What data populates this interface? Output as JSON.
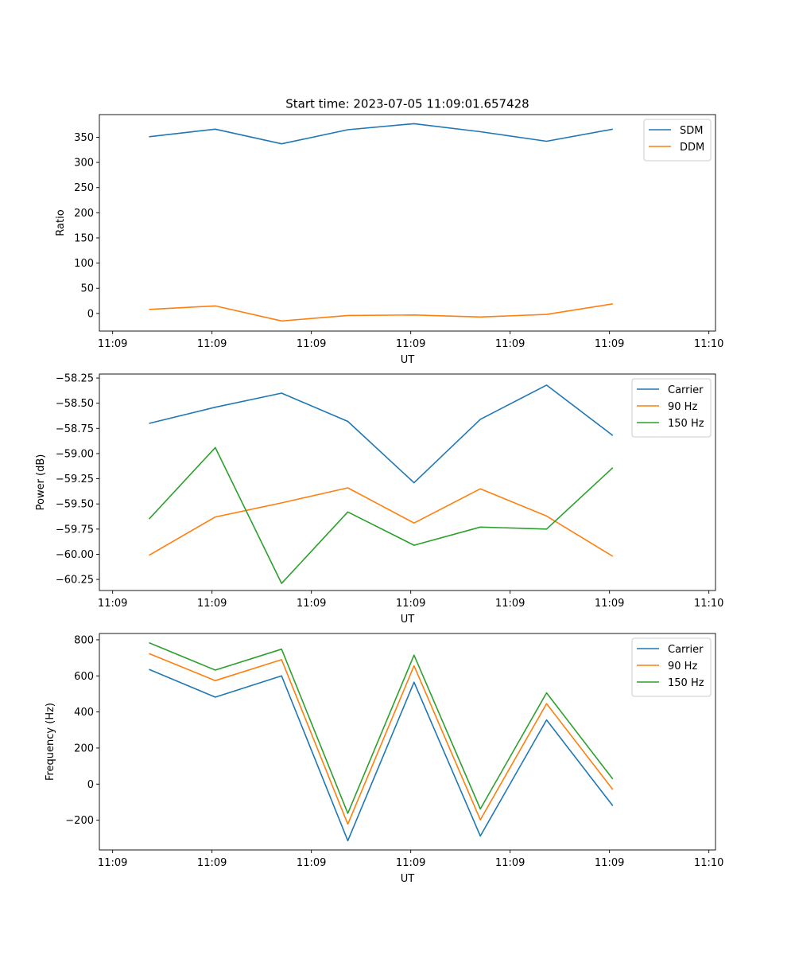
{
  "title": "Start time: 2023-07-05 11:09:01.657428",
  "colors": {
    "blue": "#1f77b4",
    "orange": "#ff7f0e",
    "green": "#2ca02c"
  },
  "chart_data": [
    {
      "type": "line",
      "xlabel": "UT",
      "ylabel": "Ratio",
      "xlim": [
        -0.2,
        9.1
      ],
      "ylim": [
        -35,
        395
      ],
      "x": [
        0.55,
        1.55,
        2.55,
        3.55,
        4.55,
        5.55,
        6.55,
        7.55
      ],
      "xticks": [
        0,
        1.5,
        3,
        4.5,
        6,
        7.5,
        9
      ],
      "xtick_labels": [
        "11:09",
        "11:09",
        "11:09",
        "11:09",
        "11:09",
        "11:09",
        "11:10"
      ],
      "yticks": [
        0,
        50,
        100,
        150,
        200,
        250,
        300,
        350
      ],
      "ytick_labels": [
        "0",
        "50",
        "100",
        "150",
        "200",
        "250",
        "300",
        "350"
      ],
      "legend": "top-right",
      "series": [
        {
          "name": "SDM",
          "color": "#1f77b4",
          "values": [
            351,
            366,
            337,
            365,
            377,
            361,
            342,
            366
          ]
        },
        {
          "name": "DDM",
          "color": "#ff7f0e",
          "values": [
            8,
            15,
            -15,
            -4,
            -3,
            -7,
            -2,
            19
          ]
        }
      ]
    },
    {
      "type": "line",
      "xlabel": "UT",
      "ylabel": "Power (dB)",
      "xlim": [
        -0.2,
        9.1
      ],
      "ylim": [
        -60.36,
        -58.21
      ],
      "x": [
        0.55,
        1.55,
        2.55,
        3.55,
        4.55,
        5.55,
        6.55,
        7.55
      ],
      "xticks": [
        0,
        1.5,
        3,
        4.5,
        6,
        7.5,
        9
      ],
      "xtick_labels": [
        "11:09",
        "11:09",
        "11:09",
        "11:09",
        "11:09",
        "11:09",
        "11:10"
      ],
      "yticks": [
        -60.25,
        -60.0,
        -59.75,
        -59.5,
        -59.25,
        -59.0,
        -58.75,
        -58.5,
        -58.25
      ],
      "ytick_labels": [
        "−60.25",
        "−60.00",
        "−59.75",
        "−59.50",
        "−59.25",
        "−59.00",
        "−58.75",
        "−58.50",
        "−58.25"
      ],
      "legend": "top-right",
      "series": [
        {
          "name": "Carrier",
          "color": "#1f77b4",
          "values": [
            -58.7,
            -58.54,
            -58.4,
            -58.68,
            -59.29,
            -58.66,
            -58.32,
            -58.82
          ]
        },
        {
          "name": "90 Hz",
          "color": "#ff7f0e",
          "values": [
            -60.01,
            -59.63,
            -59.49,
            -59.34,
            -59.69,
            -59.35,
            -59.62,
            -60.02
          ]
        },
        {
          "name": "150 Hz",
          "color": "#2ca02c",
          "values": [
            -59.65,
            -58.94,
            -60.29,
            -59.58,
            -59.91,
            -59.73,
            -59.75,
            -59.14
          ]
        }
      ]
    },
    {
      "type": "line",
      "xlabel": "UT",
      "ylabel": "Frequency (Hz)",
      "xlim": [
        -0.2,
        9.1
      ],
      "ylim": [
        -365,
        835
      ],
      "x": [
        0.55,
        1.55,
        2.55,
        3.55,
        4.55,
        5.55,
        6.55,
        7.55
      ],
      "xticks": [
        0,
        1.5,
        3,
        4.5,
        6,
        7.5,
        9
      ],
      "xtick_labels": [
        "11:09",
        "11:09",
        "11:09",
        "11:09",
        "11:09",
        "11:09",
        "11:10"
      ],
      "yticks": [
        -200,
        0,
        200,
        400,
        600,
        800
      ],
      "ytick_labels": [
        "−200",
        "0",
        "200",
        "400",
        "600",
        "800"
      ],
      "legend": "top-right",
      "series": [
        {
          "name": "Carrier",
          "color": "#1f77b4",
          "values": [
            636,
            482,
            600,
            -314,
            565,
            -288,
            356,
            -120
          ]
        },
        {
          "name": "90 Hz",
          "color": "#ff7f0e",
          "values": [
            724,
            574,
            690,
            -222,
            656,
            -198,
            446,
            -30
          ]
        },
        {
          "name": "150 Hz",
          "color": "#2ca02c",
          "values": [
            784,
            632,
            748,
            -162,
            715,
            -138,
            506,
            28
          ]
        }
      ]
    }
  ]
}
